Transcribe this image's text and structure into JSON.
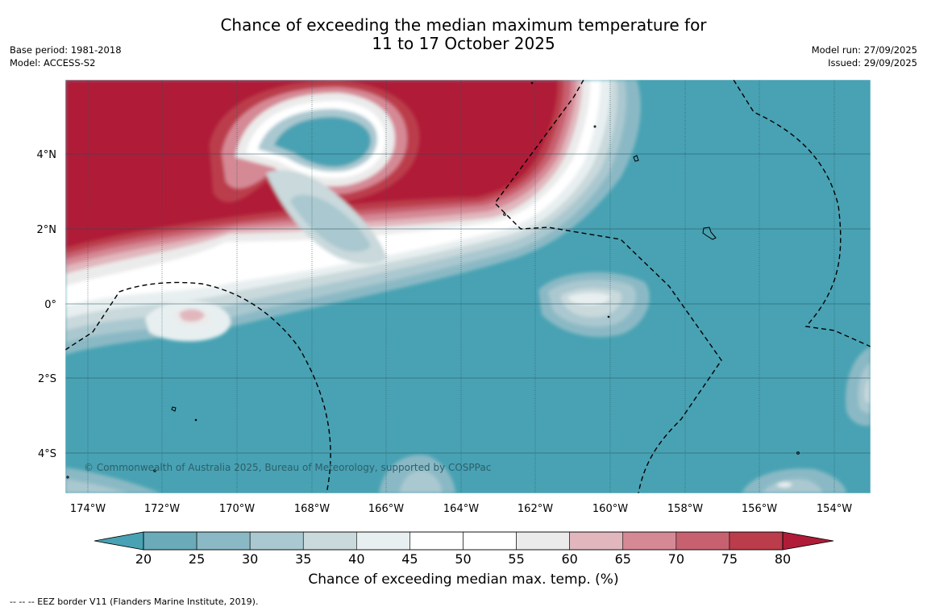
{
  "title": {
    "line1": "Chance of exceeding the median maximum temperature for",
    "line2": "11 to 17 October 2025"
  },
  "meta_left": {
    "base_period": "Base period: 1981-2018",
    "model": "Model: ACCESS-S2"
  },
  "meta_right": {
    "model_run": "Model run: 27/09/2025",
    "issued": "Issued: 29/09/2025"
  },
  "copyright": "© Commonwealth of Australia 2025, Bureau of Meteorology, supported by COSPPac",
  "axes": {
    "lon_labels": [
      "174°W",
      "172°W",
      "170°W",
      "168°W",
      "166°W",
      "164°W",
      "162°W",
      "160°W",
      "158°W",
      "156°W",
      "154°W"
    ],
    "lat_labels": [
      "4°N",
      "2°N",
      "0°",
      "2°S",
      "4°S"
    ]
  },
  "colorbar": {
    "ticks": [
      "20",
      "25",
      "30",
      "35",
      "40",
      "45",
      "50",
      "55",
      "60",
      "65",
      "70",
      "75",
      "80"
    ],
    "colors": [
      "#6aaab9",
      "#8ab9c5",
      "#aac8d0",
      "#c9d9dc",
      "#e8eff0",
      "#ffffff",
      "#ffffff",
      "#ebebeb",
      "#e1b7bd",
      "#d58995",
      "#c8616f",
      "#bb3c4b"
    ],
    "under_color": "#48a2b3",
    "over_color": "#b01c38",
    "title": "Chance of exceeding median max. temp. (%)"
  },
  "footnote": "--  --  -- EEZ border V11 (Flanders Marine Institute, 2019)."
}
